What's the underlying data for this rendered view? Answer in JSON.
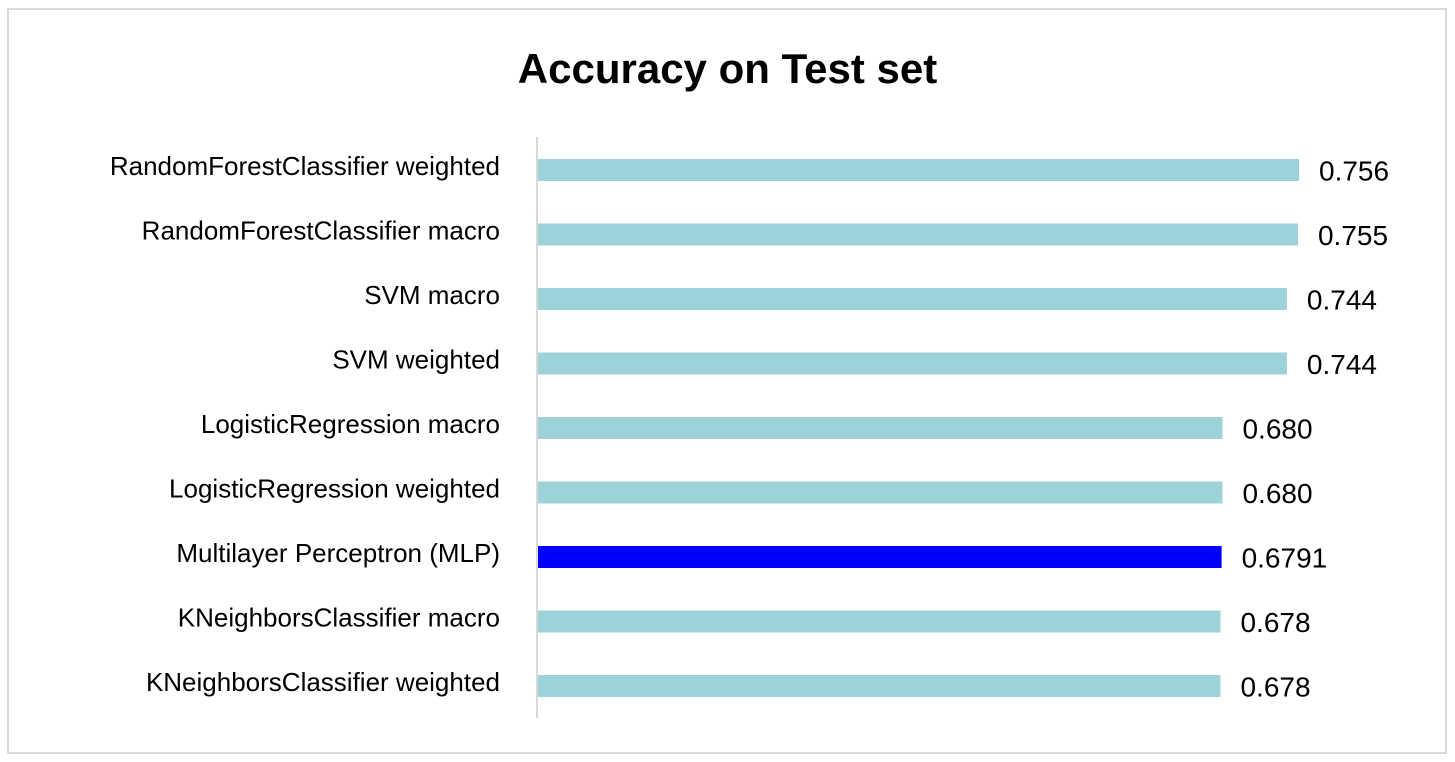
{
  "chart_data": {
    "type": "bar",
    "orientation": "horizontal",
    "title": "Accuracy on Test set",
    "categories": [
      "RandomForestClassifier weighted",
      "RandomForestClassifier macro",
      "SVM macro",
      "SVM weighted",
      "LogisticRegression macro",
      "LogisticRegression weighted",
      "Multilayer Perceptron (MLP)",
      "KNeighborsClassifier macro",
      "KNeighborsClassifier weighted"
    ],
    "values": [
      0.756,
      0.755,
      0.744,
      0.744,
      0.68,
      0.68,
      0.6791,
      0.678,
      0.678
    ],
    "value_labels": [
      "0.756",
      "0.755",
      "0.744",
      "0.744",
      "0.680",
      "0.680",
      "0.6791",
      "0.678",
      "0.678"
    ],
    "bar_colors": [
      "#9dd3d8",
      "#9dd3d8",
      "#9dd3d8",
      "#9dd3d8",
      "#9dd3d8",
      "#9dd3d8",
      "#0000ff",
      "#9dd3d8",
      "#9dd3d8"
    ],
    "xlim": [
      0,
      0.756
    ],
    "xaxis_visible": false,
    "grid": false,
    "legend": "none"
  }
}
